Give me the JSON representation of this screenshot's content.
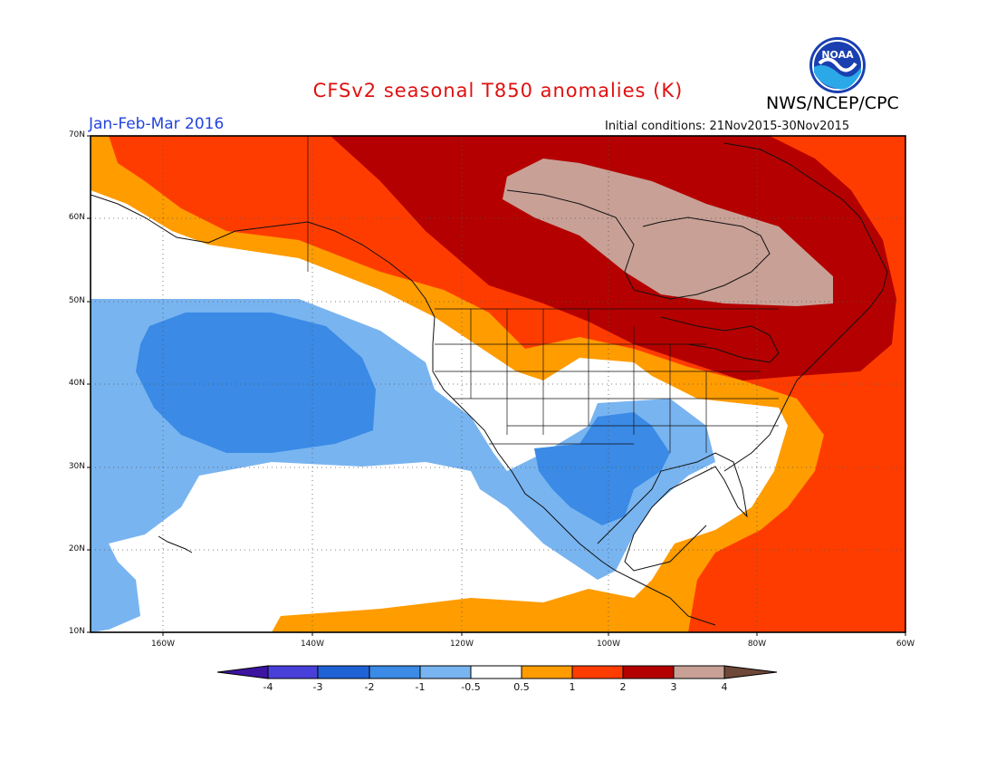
{
  "header": {
    "title": "CFSv2 seasonal T850 anomalies (K)",
    "period": "Jan-Feb-Mar 2016",
    "initial_conditions": "Initial conditions: 21Nov2015-30Nov2015",
    "agency": "NWS/NCEP/CPC",
    "logo_text": "NOAA"
  },
  "map": {
    "lat_labels": [
      "70N",
      "60N",
      "50N",
      "40N",
      "30N",
      "20N",
      "10N"
    ],
    "lon_labels": [
      "160W",
      "140W",
      "120W",
      "100W",
      "80W",
      "60W"
    ],
    "colors": {
      "lt_m4": "#3c14a0",
      "m4_m3": "#4840d8",
      "m3_m2": "#1e62d6",
      "m2_m1": "#3a8ae6",
      "m1_m05": "#78b4f0",
      "neutral": "#ffffff",
      "p05_1": "#ff9c00",
      "p1_2": "#ff3c00",
      "p2_3": "#b40000",
      "p3_4": "#c8a096",
      "gt_4": "#6e4838"
    }
  },
  "colorbar": {
    "labels": [
      "-4",
      "-3",
      "-2",
      "-1",
      "-0.5",
      "0.5",
      "1",
      "2",
      "3",
      "4"
    ]
  }
}
